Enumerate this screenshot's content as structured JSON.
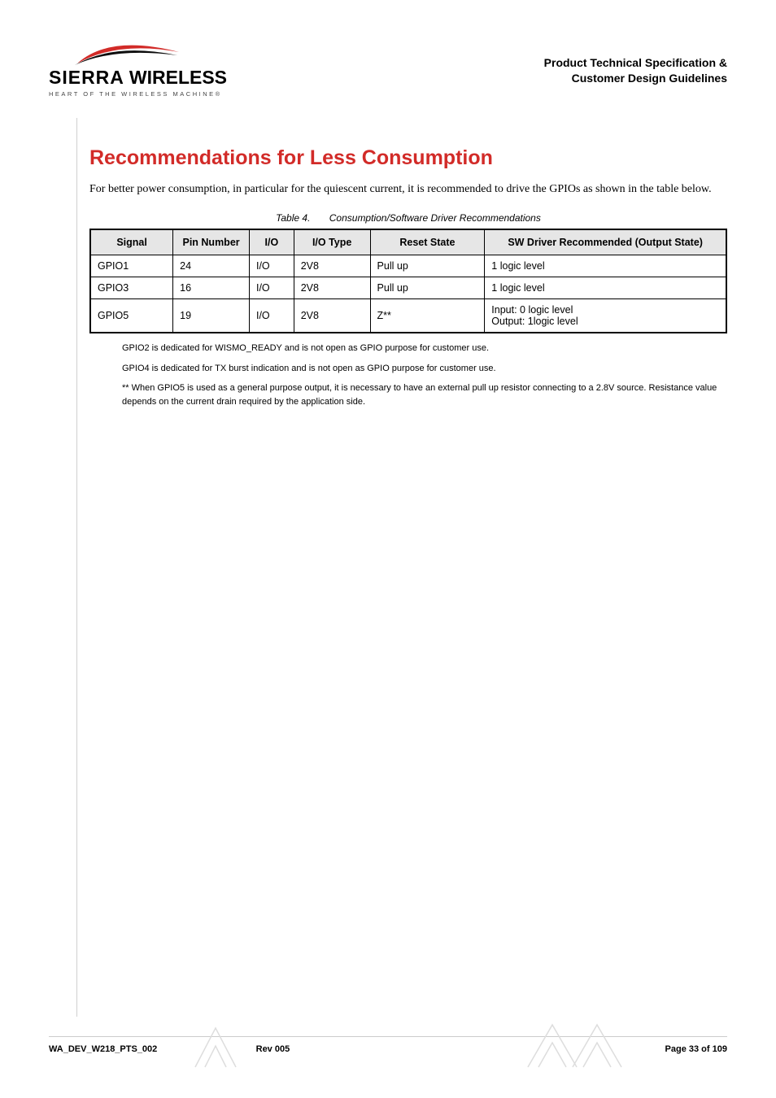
{
  "header": {
    "brand_line1": "SIERRA",
    "brand_line2": "WIRELESS",
    "tagline": "HEART OF THE WIRELESS MACHINE®",
    "doc_title_l1": "Product Technical Specification &",
    "doc_title_l2": "Customer Design Guidelines"
  },
  "section": {
    "title": "Recommendations for Less Consumption",
    "intro": "For better power consumption, in particular for the quiescent current, it is recommended to drive the GPIOs as shown in the table below."
  },
  "table": {
    "label": "Table 4.",
    "caption": "Consumption/Software Driver Recommendations",
    "columns": [
      "Signal",
      "Pin Number",
      "I/O",
      "I/O Type",
      "Reset State",
      "SW Driver Recommended (Output State)"
    ],
    "col_widths": [
      "13%",
      "12%",
      "7%",
      "12%",
      "18%",
      "38%"
    ],
    "rows": [
      [
        "GPIO1",
        "24",
        "I/O",
        "2V8",
        "Pull up",
        "1 logic level"
      ],
      [
        "GPIO3",
        "16",
        "I/O",
        "2V8",
        "Pull up",
        "1 logic level"
      ],
      [
        "GPIO5",
        "19",
        "I/O",
        "2V8",
        "Z**",
        "Input: 0 logic level\nOutput: 1logic level"
      ]
    ]
  },
  "notes": {
    "n1": "GPIO2 is dedicated for WISMO_READY and is not open as GPIO purpose for customer use.",
    "n2": "GPIO4 is dedicated for TX burst indication and is not open as GPIO purpose for customer use.",
    "n3": "** When GPIO5 is used as a general purpose output, it is necessary to have an external pull up resistor connecting to a 2.8V source. Resistance value depends on the current drain required by the application side."
  },
  "footer": {
    "left": "WA_DEV_W218_PTS_002",
    "center": "Rev 005",
    "right": "Page 33 of 109"
  },
  "colors": {
    "accent_red": "#d22b28",
    "th_bg": "#e6e6e6",
    "rule": "#ccc"
  }
}
